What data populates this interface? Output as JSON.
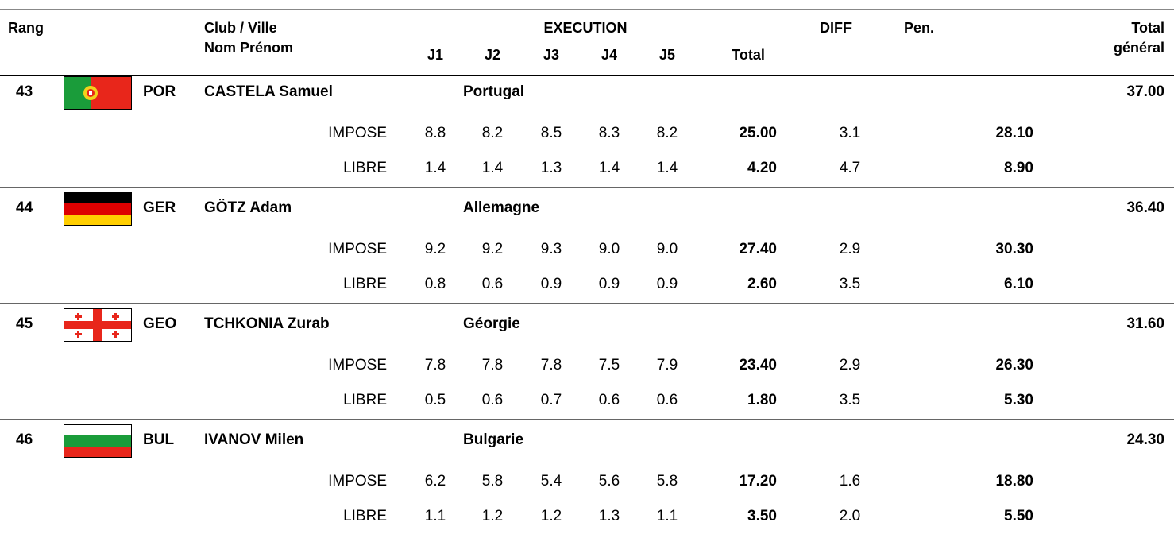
{
  "header": {
    "rank": "Rang",
    "club": "Club / Ville",
    "name": "Nom Prénom",
    "execution": "EXECUTION",
    "judges": [
      "J1",
      "J2",
      "J3",
      "J4",
      "J5"
    ],
    "total": "Total",
    "diff": "DIFF",
    "pen": "Pen.",
    "grand_total": [
      "Total",
      "général"
    ]
  },
  "athletes": [
    {
      "rank": "43",
      "code": "POR",
      "name": "CASTELA Samuel",
      "club": "Portugal",
      "grand_total": "37.00",
      "routines": [
        {
          "label": "IMPOSE",
          "scores": [
            "8.8",
            "8.2",
            "8.5",
            "8.3",
            "8.2"
          ],
          "total": "25.00",
          "diff": "3.1",
          "sum": "28.10"
        },
        {
          "label": "LIBRE",
          "scores": [
            "1.4",
            "1.4",
            "1.3",
            "1.4",
            "1.4"
          ],
          "total": "4.20",
          "diff": "4.7",
          "sum": "8.90"
        }
      ]
    },
    {
      "rank": "44",
      "code": "GER",
      "name": "GÖTZ Adam",
      "club": "Allemagne",
      "grand_total": "36.40",
      "routines": [
        {
          "label": "IMPOSE",
          "scores": [
            "9.2",
            "9.2",
            "9.3",
            "9.0",
            "9.0"
          ],
          "total": "27.40",
          "diff": "2.9",
          "sum": "30.30"
        },
        {
          "label": "LIBRE",
          "scores": [
            "0.8",
            "0.6",
            "0.9",
            "0.9",
            "0.9"
          ],
          "total": "2.60",
          "diff": "3.5",
          "sum": "6.10"
        }
      ]
    },
    {
      "rank": "45",
      "code": "GEO",
      "name": "TCHKONIA Zurab",
      "club": "Géorgie",
      "grand_total": "31.60",
      "routines": [
        {
          "label": "IMPOSE",
          "scores": [
            "7.8",
            "7.8",
            "7.8",
            "7.5",
            "7.9"
          ],
          "total": "23.40",
          "diff": "2.9",
          "sum": "26.30"
        },
        {
          "label": "LIBRE",
          "scores": [
            "0.5",
            "0.6",
            "0.7",
            "0.6",
            "0.6"
          ],
          "total": "1.80",
          "diff": "3.5",
          "sum": "5.30"
        }
      ]
    },
    {
      "rank": "46",
      "code": "BUL",
      "name": "IVANOV Milen",
      "club": "Bulgarie",
      "grand_total": "24.30",
      "routines": [
        {
          "label": "IMPOSE",
          "scores": [
            "6.2",
            "5.8",
            "5.4",
            "5.6",
            "5.8"
          ],
          "total": "17.20",
          "diff": "1.6",
          "sum": "18.80"
        },
        {
          "label": "LIBRE",
          "scores": [
            "1.1",
            "1.2",
            "1.2",
            "1.3",
            "1.1"
          ],
          "total": "3.50",
          "diff": "2.0",
          "sum": "5.50"
        }
      ]
    }
  ]
}
